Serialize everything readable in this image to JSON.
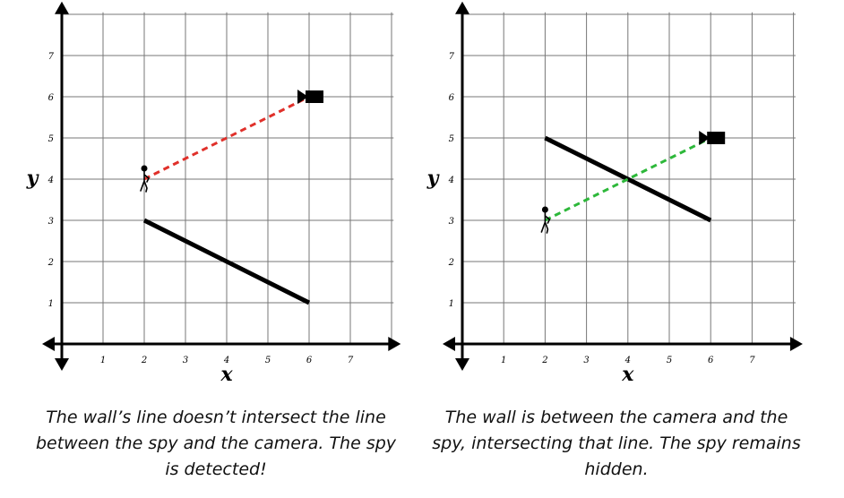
{
  "panels": [
    {
      "id": "left",
      "x_ticks": [
        "1",
        "2",
        "3",
        "4",
        "5",
        "6",
        "7"
      ],
      "y_ticks": [
        "1",
        "2",
        "3",
        "4",
        "5",
        "6",
        "7"
      ],
      "x_axis_label": "x",
      "y_axis_label": "y",
      "wall": {
        "from": [
          2,
          3
        ],
        "to": [
          6,
          1
        ]
      },
      "spy": [
        2,
        4
      ],
      "camera": [
        6,
        6
      ],
      "sightline": {
        "from": [
          2,
          4
        ],
        "to": [
          6,
          6
        ],
        "style": "dashed",
        "color": "#e0302a"
      },
      "caption": "The wall’s line doesn’t intersect the line between the spy and the camera. The spy is detected!"
    },
    {
      "id": "right",
      "x_ticks": [
        "1",
        "2",
        "3",
        "4",
        "5",
        "6",
        "7"
      ],
      "y_ticks": [
        "1",
        "2",
        "3",
        "4",
        "5",
        "6",
        "7"
      ],
      "x_axis_label": "x",
      "y_axis_label": "y",
      "wall": {
        "from": [
          2,
          5
        ],
        "to": [
          6,
          3
        ]
      },
      "spy": [
        2,
        3
      ],
      "camera": [
        6,
        5
      ],
      "sightline": {
        "from": [
          2,
          3
        ],
        "to": [
          6,
          5
        ],
        "style": "dashed",
        "color": "#2db83a"
      },
      "caption": "The wall is between the camera and the spy, intersecting that line. The spy remains hidden."
    }
  ],
  "colors": {
    "grid": "#777777",
    "axis": "#000000",
    "wall": "#000000"
  },
  "icons": {
    "spy": "stick-figure-icon",
    "camera": "video-camera-icon"
  }
}
